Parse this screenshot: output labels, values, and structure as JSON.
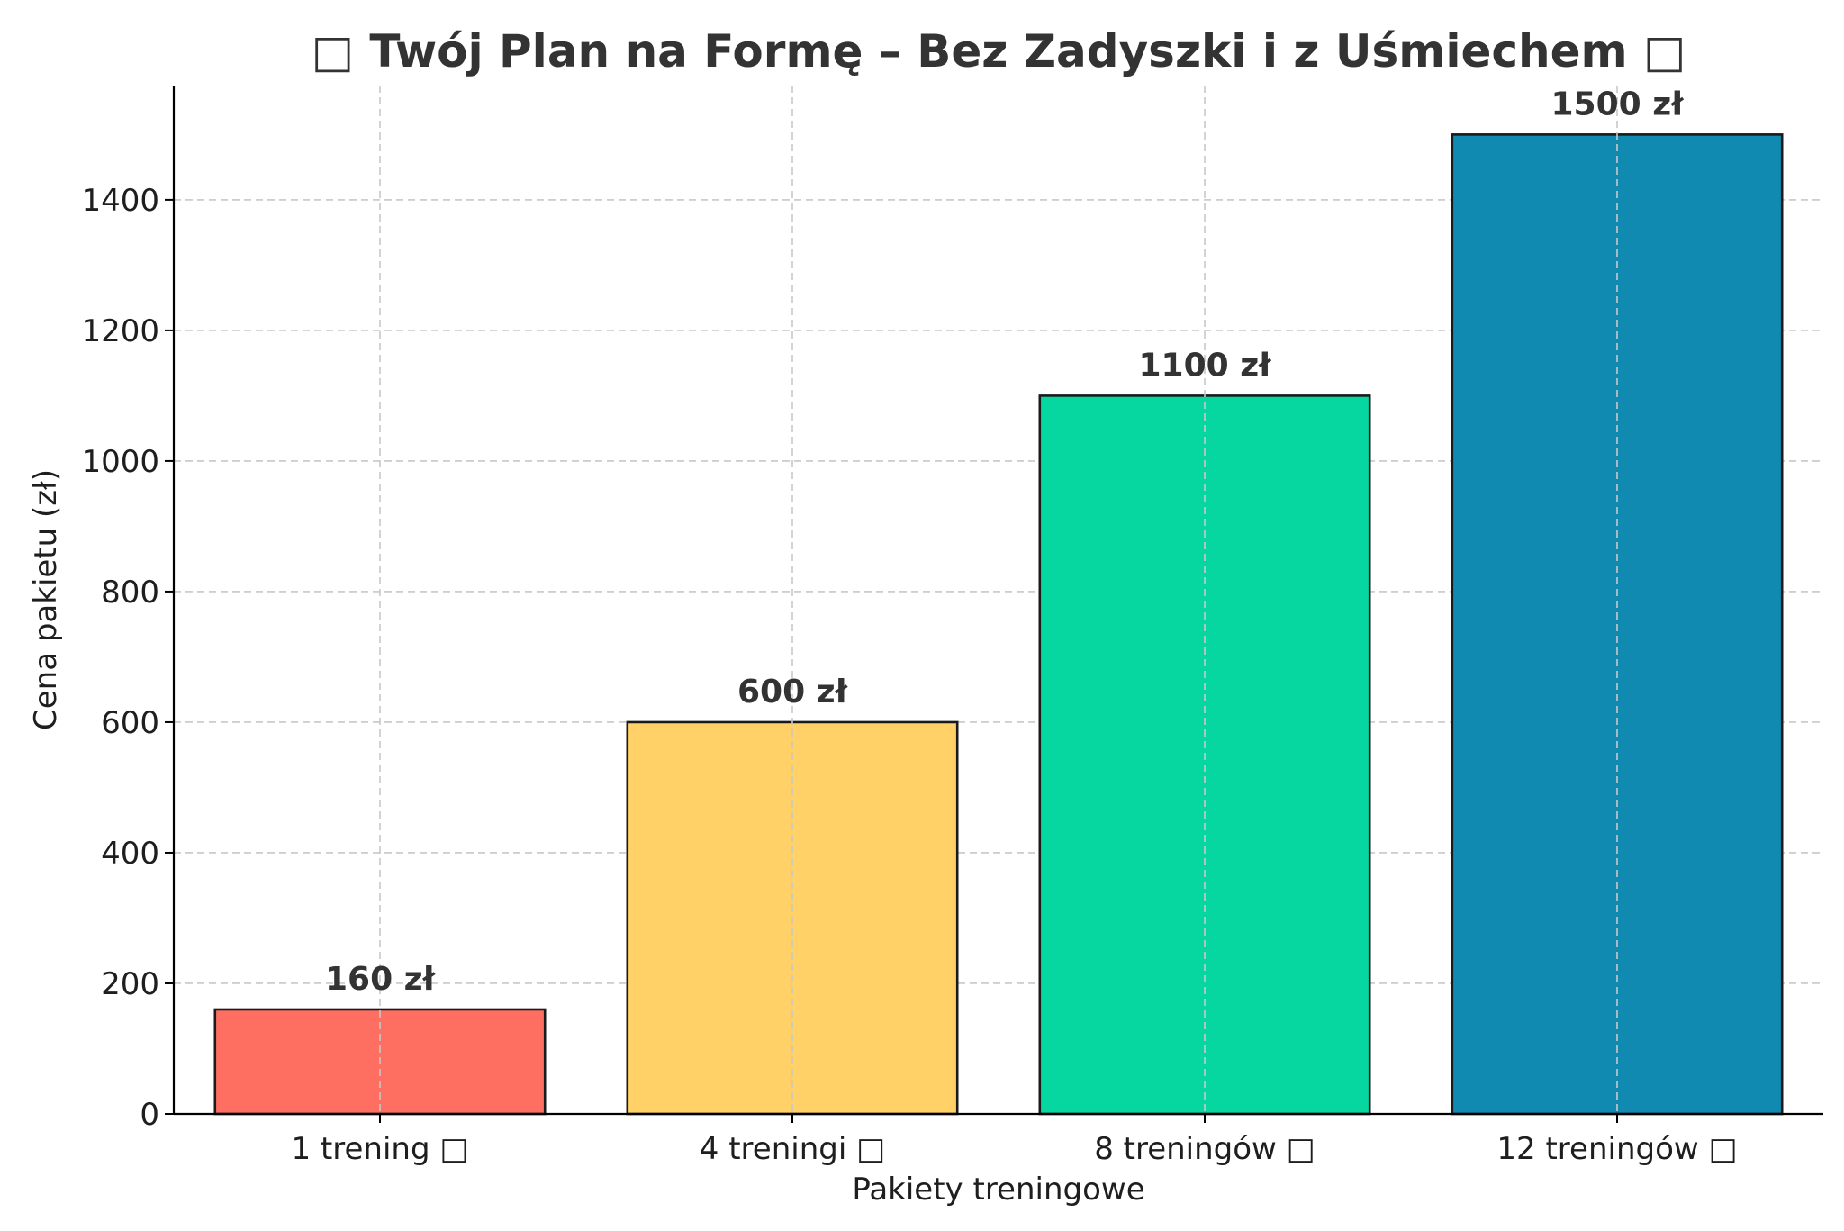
{
  "chart_data": {
    "type": "bar",
    "title": "□ Twój Plan na Formę – Bez Zadyszki i z Uśmiechem □",
    "xlabel": "Pakiety treningowe",
    "ylabel": "Cena pakietu (zł)",
    "categories": [
      "1 trening □",
      "4 treningi □",
      "8 treningów □",
      "12 treningów □"
    ],
    "values": [
      160,
      600,
      1100,
      1500
    ],
    "data_labels": [
      "160 zł",
      "600 zł",
      "1100 zł",
      "1500 zł"
    ],
    "colors": [
      "#ff6f61",
      "#ffd166",
      "#06d6a0",
      "#118ab2"
    ],
    "ylim": [
      0,
      1575
    ],
    "yticks": [
      0,
      200,
      400,
      600,
      800,
      1000,
      1200,
      1400
    ],
    "grid": true,
    "legend": "none"
  }
}
